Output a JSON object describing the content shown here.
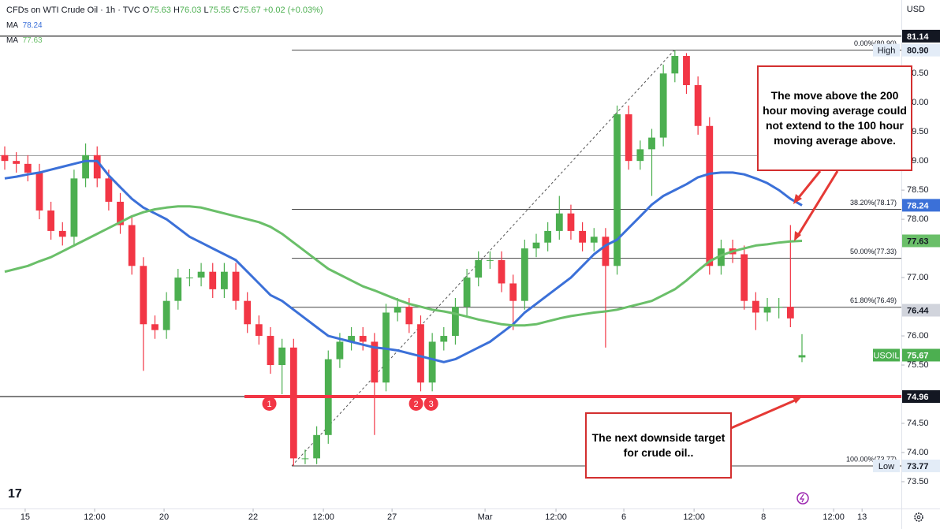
{
  "chart_data": {
    "type": "candlestick",
    "title": "CFDs on WTI Crude Oil · 1h · TVC",
    "currency": "USD",
    "ohlc_letters": [
      "O",
      "H",
      "L",
      "C"
    ],
    "change": "+0.02 (+0.03%)",
    "up_color": "#4caf50",
    "down_color": "#f23645",
    "xlim": [
      -0.41,
      77.6
    ],
    "ylim": [
      73.04,
      81.76
    ],
    "grid": false,
    "xticks": [
      {
        "value": 1.77,
        "label": "15"
      },
      {
        "value": 7.78,
        "label": "12:00"
      },
      {
        "value": 13.79,
        "label": "20"
      },
      {
        "value": 21.5,
        "label": "22"
      },
      {
        "value": 27.58,
        "label": "12:00"
      },
      {
        "value": 33.52,
        "label": "27"
      },
      {
        "value": 41.57,
        "label": "Mar"
      },
      {
        "value": 47.71,
        "label": "12:00"
      },
      {
        "value": 53.58,
        "label": "6"
      },
      {
        "value": 59.66,
        "label": "12:00"
      },
      {
        "value": 65.67,
        "label": "8"
      },
      {
        "value": 71.74,
        "label": "12:00"
      },
      {
        "value": 74.2,
        "label": "13"
      }
    ],
    "yticks": [
      {
        "value": 80.5,
        "label": "80.50"
      },
      {
        "value": 80,
        "label": "80.00"
      },
      {
        "value": 79.5,
        "label": "79.50"
      },
      {
        "value": 79,
        "label": "79.00"
      },
      {
        "value": 78.5,
        "label": "78.50"
      },
      {
        "value": 78,
        "label": "78.00"
      },
      {
        "value": 77,
        "label": "77.00"
      },
      {
        "value": 76,
        "label": "76.00"
      },
      {
        "value": 75.5,
        "label": "75.50"
      },
      {
        "value": 74.5,
        "label": "74.50"
      },
      {
        "value": 74,
        "label": "74.00"
      },
      {
        "value": 73.5,
        "label": "73.50"
      }
    ],
    "candles": {
      "open": [
        79.1,
        79.0,
        78.95,
        78.8,
        78.15,
        77.8,
        77.7,
        78.7,
        79.1,
        78.7,
        78.3,
        77.9,
        77.2,
        76.2,
        76.1,
        76.6,
        77.0,
        77.0,
        77.1,
        76.8,
        77.1,
        76.6,
        76.2,
        76.0,
        75.5,
        75.8,
        73.9,
        73.9,
        74.3,
        75.6,
        75.9,
        76.0,
        75.9,
        75.2,
        76.4,
        76.5,
        76.2,
        75.2,
        75.9,
        76.0,
        76.5,
        77.0,
        77.3,
        77.3,
        76.9,
        76.6,
        77.5,
        77.6,
        77.8,
        78.1,
        77.8,
        77.6,
        77.7,
        77.2,
        79.8,
        79.0,
        79.2,
        79.4,
        80.5,
        80.8,
        80.3,
        79.6,
        77.2,
        77.5,
        77.4,
        76.6,
        76.4,
        76.5,
        76.5,
        75.63
      ],
      "high": [
        79.25,
        79.15,
        79.1,
        78.95,
        78.3,
        77.95,
        78.85,
        79.3,
        79.25,
        78.85,
        78.45,
        78.05,
        77.35,
        76.35,
        76.75,
        77.15,
        77.15,
        77.25,
        77.25,
        77.25,
        77.25,
        76.75,
        76.35,
        76.15,
        75.95,
        75.95,
        74.05,
        74.45,
        75.75,
        76.05,
        76.15,
        76.15,
        76.05,
        76.55,
        76.65,
        76.65,
        76.35,
        76.05,
        76.15,
        76.65,
        77.15,
        77.45,
        77.45,
        77.45,
        77.05,
        77.65,
        77.75,
        77.95,
        78.4,
        78.25,
        77.95,
        77.85,
        77.85,
        79.95,
        79.95,
        79.35,
        79.55,
        80.65,
        80.9,
        80.85,
        80.45,
        79.75,
        77.65,
        77.65,
        77.55,
        76.75,
        76.65,
        76.65,
        77.9,
        76.03
      ],
      "low": [
        78.85,
        78.8,
        78.65,
        78.0,
        77.65,
        77.55,
        77.55,
        78.55,
        78.55,
        78.15,
        77.75,
        77.05,
        75.4,
        75.95,
        75.95,
        76.45,
        76.85,
        76.85,
        76.65,
        76.65,
        76.45,
        76.05,
        75.85,
        75.35,
        75.0,
        73.77,
        73.8,
        73.8,
        74.15,
        75.45,
        75.75,
        75.75,
        74.3,
        75.05,
        76.25,
        76.05,
        75.05,
        75.05,
        75.75,
        75.85,
        76.35,
        76.85,
        77.15,
        76.75,
        76.1,
        76.45,
        77.35,
        77.45,
        77.65,
        77.65,
        77.45,
        77.45,
        75.8,
        77.05,
        78.85,
        78.85,
        78.4,
        79.25,
        80.35,
        80.15,
        79.45,
        77.05,
        77.05,
        77.25,
        76.45,
        76.1,
        76.25,
        76.3,
        76.15,
        75.55
      ],
      "close": [
        79.0,
        78.95,
        78.8,
        78.15,
        77.8,
        77.7,
        78.7,
        79.1,
        78.7,
        78.3,
        77.9,
        77.2,
        76.2,
        76.1,
        76.6,
        77.0,
        77.0,
        77.1,
        76.8,
        77.1,
        76.6,
        76.2,
        76.0,
        75.5,
        75.8,
        73.9,
        73.9,
        74.3,
        75.6,
        75.9,
        76.0,
        75.9,
        75.2,
        76.4,
        76.5,
        76.2,
        75.2,
        75.9,
        76.0,
        76.5,
        77.0,
        77.3,
        77.3,
        76.9,
        76.6,
        77.5,
        77.6,
        77.8,
        78.1,
        77.8,
        77.6,
        77.7,
        77.2,
        79.8,
        79.0,
        79.2,
        79.4,
        80.5,
        80.8,
        80.3,
        79.6,
        77.2,
        77.5,
        77.4,
        76.6,
        76.4,
        76.5,
        76.5,
        76.3,
        75.67
      ]
    },
    "series": [
      {
        "name": "MA",
        "color": "#3b70d8",
        "values": [
          78.7,
          78.73,
          78.77,
          78.8,
          78.85,
          78.9,
          78.95,
          79.0,
          79.0,
          78.75,
          78.55,
          78.35,
          78.2,
          78.1,
          78.0,
          77.85,
          77.7,
          77.6,
          77.5,
          77.4,
          77.3,
          77.1,
          76.9,
          76.7,
          76.6,
          76.45,
          76.3,
          76.15,
          76.0,
          75.95,
          75.9,
          75.85,
          75.8,
          75.78,
          75.75,
          75.7,
          75.65,
          75.6,
          75.55,
          75.6,
          75.7,
          75.8,
          75.9,
          76.05,
          76.2,
          76.4,
          76.55,
          76.7,
          76.85,
          77.0,
          77.2,
          77.4,
          77.55,
          77.65,
          77.85,
          78.05,
          78.25,
          78.4,
          78.5,
          78.6,
          78.72,
          78.78,
          78.8,
          78.8,
          78.77,
          78.7,
          78.62,
          78.5,
          78.35,
          78.24
        ]
      },
      {
        "name": "MA",
        "color": "#6abf69",
        "values": [
          77.1,
          77.15,
          77.2,
          77.28,
          77.35,
          77.45,
          77.55,
          77.65,
          77.75,
          77.85,
          77.95,
          78.05,
          78.12,
          78.17,
          78.2,
          78.22,
          78.22,
          78.2,
          78.15,
          78.1,
          78.05,
          78.0,
          77.95,
          77.87,
          77.75,
          77.6,
          77.45,
          77.3,
          77.15,
          77.05,
          76.95,
          76.85,
          76.78,
          76.7,
          76.62,
          76.55,
          76.5,
          76.45,
          76.42,
          76.38,
          76.33,
          76.28,
          76.24,
          76.2,
          76.18,
          76.18,
          76.2,
          76.25,
          76.3,
          76.34,
          76.37,
          76.4,
          76.42,
          76.45,
          76.5,
          76.55,
          76.6,
          76.7,
          76.8,
          76.95,
          77.12,
          77.28,
          77.38,
          77.45,
          77.5,
          77.55,
          77.57,
          77.6,
          77.62,
          77.63
        ]
      }
    ],
    "horizontal_lines": [
      {
        "value": 81.14,
        "color": "#000000"
      },
      {
        "value": 79.09,
        "color": "#9e9e9e"
      },
      {
        "value": 74.96,
        "color": "#000000"
      }
    ],
    "support_line": {
      "value": 74.96,
      "from_x": 20.75,
      "color": "#f23645"
    },
    "markers": [
      {
        "label": "1",
        "x": 22.9
      },
      {
        "label": "2",
        "x": 35.6
      },
      {
        "label": "3",
        "x": 36.9
      }
    ],
    "fib": {
      "low_x": 24.85,
      "high_x": 57.95,
      "levels": [
        {
          "value": 80.9,
          "label": "0.00%(80.90)"
        },
        {
          "value": 78.17,
          "label": "38.20%(78.17)"
        },
        {
          "value": 77.33,
          "label": "50.00%(77.33)"
        },
        {
          "value": 76.49,
          "label": "61.80%(76.49)"
        },
        {
          "value": 73.77,
          "label": "100.00%(73.77)"
        }
      ]
    },
    "price_tags": [
      {
        "value": 81.14,
        "label": "81.14",
        "bg": "#131722",
        "fg": "#ffffff"
      },
      {
        "value": 80.9,
        "label": "80.90",
        "bg": "#e3ecf7",
        "fg": "#131722",
        "badge": "High"
      },
      {
        "value": 78.24,
        "label": "78.24",
        "bg": "#3b70d8",
        "fg": "#ffffff"
      },
      {
        "value": 77.63,
        "label": "77.63",
        "bg": "#6abf69",
        "fg": "#131722"
      },
      {
        "value": 76.44,
        "label": "76.44",
        "bg": "#d1d4dc",
        "fg": "#131722"
      },
      {
        "value": 75.67,
        "label": "75.67",
        "bg": "#4caf50",
        "fg": "#ffffff",
        "badge": "USOIL"
      },
      {
        "value": 74.96,
        "label": "74.96",
        "bg": "#131722",
        "fg": "#ffffff"
      },
      {
        "value": 73.77,
        "label": "73.77",
        "bg": "#e3ecf7",
        "fg": "#131722",
        "badge": "Low"
      }
    ],
    "annotations": [
      "The move above the 200 hour moving average could not extend to the 100 hour moving average above.",
      "The next downside target for crude oil.."
    ]
  }
}
